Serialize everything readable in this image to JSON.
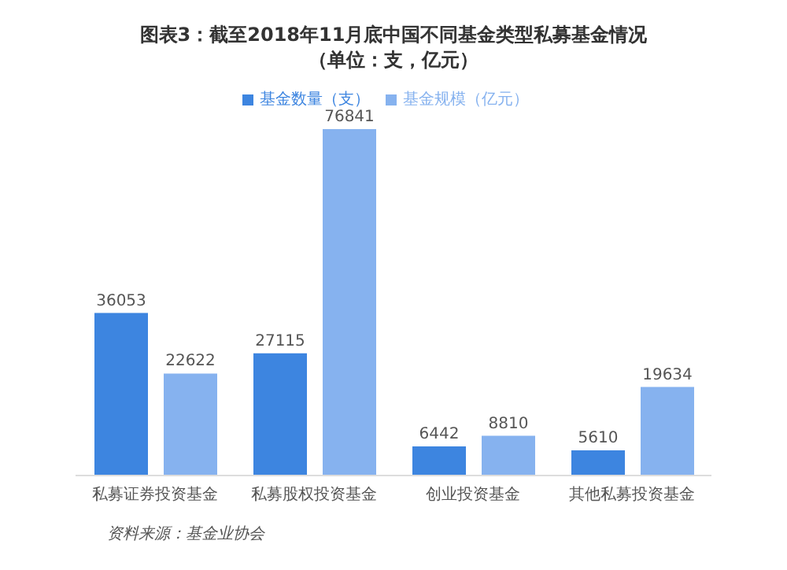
{
  "chart_data": {
    "type": "bar",
    "title": "图表3：截至2018年11月底中国不同基金类型私募基金情况（单位：支，亿元）",
    "categories": [
      "私募证券投资基金",
      "私募股权投资基金",
      "创业投资基金",
      "其他私募投资基金"
    ],
    "series": [
      {
        "name": "基金数量（支）",
        "color": "#3d85e0",
        "values": [
          36053,
          27115,
          6442,
          5610
        ]
      },
      {
        "name": "基金规模（亿元）",
        "color": "#86b2ef",
        "values": [
          22622,
          76841,
          8810,
          19634
        ]
      }
    ],
    "data_labels": true,
    "legend": "top",
    "grid": false,
    "annotations": [
      "资料来源：基金业协会"
    ]
  }
}
